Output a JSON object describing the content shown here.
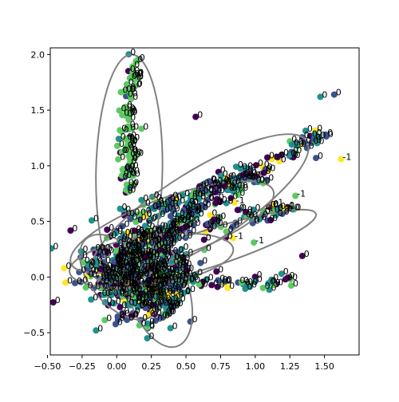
{
  "chart_data": {
    "type": "scatter",
    "title": "",
    "xlabel": "",
    "ylabel": "",
    "xlim": [
      -0.48,
      1.75
    ],
    "ylim": [
      -0.7,
      2.06
    ],
    "xticks": [
      -0.5,
      -0.25,
      0.0,
      0.25,
      0.5,
      0.75,
      1.0,
      1.25,
      1.5
    ],
    "xtick_labels": [
      "−0.50",
      "−0.25",
      "0.00",
      "0.25",
      "0.50",
      "0.75",
      "1.00",
      "1.25",
      "1.50"
    ],
    "yticks": [
      -0.5,
      0.0,
      0.5,
      1.0,
      1.5,
      2.0
    ],
    "ytick_labels": [
      "−0.5",
      "0.0",
      "0.5",
      "1.0",
      "1.5",
      "2.0"
    ],
    "grid": false,
    "legend": "none",
    "colors": {
      "dark_purple": "#440154",
      "blue": "#3b528b",
      "teal": "#21918c",
      "green": "#5ec962",
      "yellow": "#fde725",
      "ellipse": "#808080"
    },
    "clusters": [
      {
        "kind": "blob",
        "label": "0",
        "cx": 0.05,
        "cy": 0.05,
        "sx": 0.15,
        "sy": 0.18,
        "n": 300
      },
      {
        "kind": "blob",
        "label": "0",
        "cx": 0.3,
        "cy": 0.05,
        "sx": 0.13,
        "sy": 0.17,
        "n": 160
      },
      {
        "kind": "blob",
        "label": "0",
        "cx": 0.25,
        "cy": -0.25,
        "sx": 0.12,
        "sy": 0.1,
        "n": 60
      },
      {
        "kind": "line",
        "label": "0",
        "x0": 0.05,
        "y0": 0.2,
        "x1": 1.45,
        "y1": 1.28,
        "spread": 0.05,
        "n": 140
      },
      {
        "kind": "line",
        "label": "0",
        "x0": 0.1,
        "y0": 0.35,
        "x1": 1.25,
        "y1": 0.62,
        "spread": 0.05,
        "n": 80
      },
      {
        "kind": "line",
        "label": "0",
        "x0": 0.05,
        "y0": 0.55,
        "x1": 0.9,
        "y1": 0.9,
        "spread": 0.05,
        "n": 70
      },
      {
        "kind": "line",
        "label": "0",
        "x0": 0.3,
        "y0": -0.05,
        "x1": 1.25,
        "y1": -0.05,
        "spread": 0.03,
        "n": 40
      },
      {
        "kind": "vline",
        "label": "0",
        "x0": 0.05,
        "y0": 0.9,
        "x1": 0.12,
        "y1": 1.98,
        "spread": 0.03,
        "n": 70
      },
      {
        "kind": "vline",
        "label": "0",
        "x0": 0.06,
        "y0": 0.75,
        "x1": 0.12,
        "y1": 1.15,
        "spread": 0.02,
        "n": 20
      }
    ],
    "points": [
      {
        "x": 0.57,
        "y": 1.44,
        "c": "#440154",
        "label": "0"
      },
      {
        "x": 1.62,
        "y": 1.06,
        "c": "#fde725",
        "label": "-1"
      },
      {
        "x": 1.29,
        "y": 0.73,
        "c": "#5ec962",
        "label": "-1"
      },
      {
        "x": 1.13,
        "y": 0.65,
        "c": "#fde725",
        "label": "-1"
      },
      {
        "x": 1.21,
        "y": 0.62,
        "c": "#fde725",
        "label": "-1"
      },
      {
        "x": 1.06,
        "y": 0.6,
        "c": "#5ec962",
        "label": "-1"
      },
      {
        "x": 0.99,
        "y": 0.31,
        "c": "#5ec962",
        "label": "-1"
      },
      {
        "x": 0.84,
        "y": 0.35,
        "c": "#fde725",
        "label": "-1"
      },
      {
        "x": 1.34,
        "y": 0.19,
        "c": "#440154",
        "label": "0"
      },
      {
        "x": 1.43,
        "y": 1.28,
        "c": "#21918c",
        "label": "0"
      },
      {
        "x": 1.51,
        "y": 1.28,
        "c": "#3b528b",
        "label": "0"
      },
      {
        "x": 1.57,
        "y": 1.64,
        "c": "#3b528b",
        "label": "0"
      },
      {
        "x": 1.47,
        "y": 1.62,
        "c": "#21918c",
        "label": "0"
      },
      {
        "x": 1.19,
        "y": 0.03,
        "c": "#21918c",
        "label": "0"
      },
      {
        "x": -0.38,
        "y": 0.08,
        "c": "#fde725",
        "label": "0"
      },
      {
        "x": -0.37,
        "y": -0.05,
        "c": "#fde725",
        "label": "0"
      },
      {
        "x": -0.15,
        "y": -0.48,
        "c": "#21918c",
        "label": "0"
      },
      {
        "x": 0.85,
        "y": 0.67,
        "c": "#fde725",
        "label": "-1"
      },
      {
        "x": 0.72,
        "y": 0.05,
        "c": "#440154",
        "label": "0"
      },
      {
        "x": 0.22,
        "y": -0.55,
        "c": "#21918c",
        "label": "0"
      }
    ],
    "ellipses": [
      {
        "cx": 0.09,
        "cy": 0.95,
        "rx": 1.05,
        "ry": 0.24,
        "angle_deg": 89
      },
      {
        "cx": 0.6,
        "cy": 0.62,
        "rx": 0.98,
        "ry": 0.3,
        "angle_deg": 38
      },
      {
        "cx": 0.4,
        "cy": 0.45,
        "rx": 0.8,
        "ry": 0.26,
        "angle_deg": 24
      },
      {
        "cx": 0.02,
        "cy": 0.0,
        "rx": 0.42,
        "ry": 0.22,
        "angle_deg": -55
      },
      {
        "cx": 0.3,
        "cy": -0.12,
        "rx": 0.52,
        "ry": 0.22,
        "angle_deg": -75
      },
      {
        "cx": 0.65,
        "cy": 0.25,
        "rx": 0.85,
        "ry": 0.16,
        "angle_deg": 22
      },
      {
        "cx": 0.25,
        "cy": 0.15,
        "rx": 0.6,
        "ry": 0.22,
        "angle_deg": 10
      }
    ]
  }
}
